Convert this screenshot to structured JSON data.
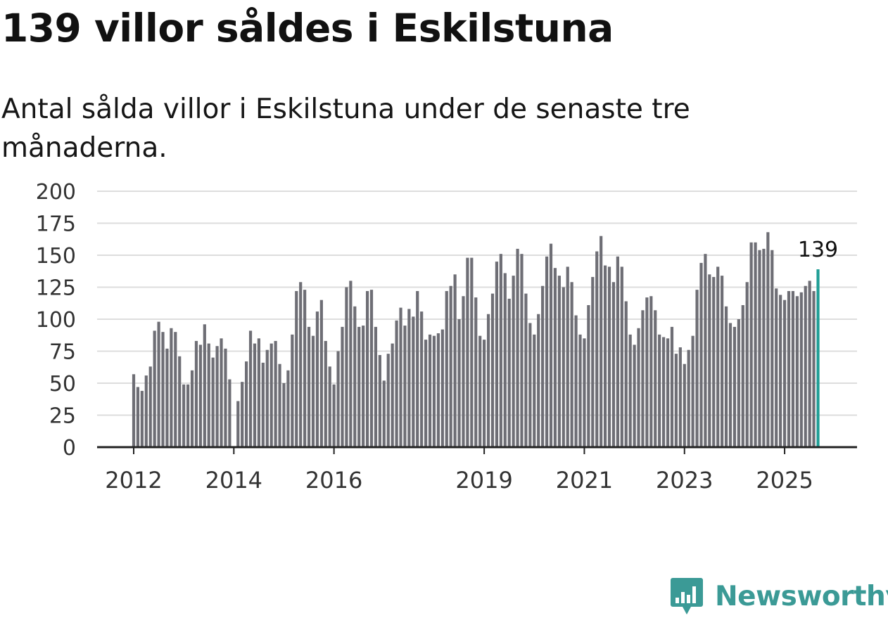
{
  "title": "139 villor såldes i Eskilstuna",
  "subtitle": "Antal sålda villor i Eskilstuna under de senaste tre månaderna.",
  "brand": {
    "name": "Newsworthy",
    "logo_icon": "bar-chart-speech-bubble-icon"
  },
  "colors": {
    "bar": "#6e6e75",
    "highlight": "#1f9e95",
    "grid": "#dddddd",
    "axis": "#222222",
    "brand": "#3b9a96"
  },
  "chart_data": {
    "type": "bar",
    "title": "139 villor såldes i Eskilstuna",
    "xlabel": "",
    "ylabel": "",
    "ylim": [
      0,
      200
    ],
    "yticks": [
      0,
      25,
      50,
      75,
      100,
      125,
      150,
      175,
      200
    ],
    "x_start": "2012-01",
    "xtick_labels": [
      {
        "label": "2012",
        "year": 2012
      },
      {
        "label": "2014",
        "year": 2014
      },
      {
        "label": "2016",
        "year": 2016
      },
      {
        "label": "2019",
        "year": 2019
      },
      {
        "label": "2021",
        "year": 2021
      },
      {
        "label": "2023",
        "year": 2023
      },
      {
        "label": "2025",
        "year": 2025
      }
    ],
    "highlight_label": "139",
    "values": [
      57,
      47,
      44,
      56,
      63,
      91,
      98,
      90,
      77,
      93,
      90,
      71,
      49,
      49,
      60,
      83,
      80,
      96,
      81,
      70,
      79,
      85,
      77,
      53,
      null,
      36,
      51,
      67,
      91,
      81,
      85,
      66,
      76,
      81,
      83,
      65,
      50,
      60,
      88,
      122,
      129,
      123,
      94,
      87,
      106,
      115,
      83,
      63,
      49,
      75,
      94,
      125,
      130,
      110,
      94,
      95,
      122,
      123,
      94,
      72,
      52,
      73,
      81,
      99,
      109,
      95,
      108,
      102,
      122,
      106,
      84,
      88,
      87,
      89,
      92,
      122,
      126,
      135,
      100,
      118,
      148,
      148,
      117,
      87,
      84,
      104,
      120,
      145,
      151,
      136,
      116,
      134,
      155,
      151,
      120,
      97,
      88,
      104,
      126,
      149,
      159,
      140,
      134,
      125,
      141,
      129,
      103,
      88,
      85,
      111,
      133,
      153,
      165,
      142,
      141,
      129,
      149,
      141,
      114,
      88,
      80,
      93,
      107,
      117,
      118,
      107,
      88,
      86,
      85,
      94,
      73,
      78,
      65,
      76,
      87,
      123,
      144,
      151,
      135,
      133,
      141,
      134,
      110,
      97,
      94,
      100,
      111,
      129,
      160,
      160,
      154,
      155,
      168,
      154,
      124,
      119,
      115,
      122,
      122,
      118,
      121,
      126,
      130,
      122,
      139
    ]
  }
}
